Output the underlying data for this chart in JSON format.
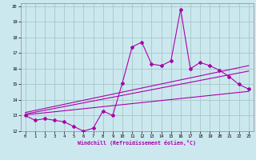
{
  "xlabel": "Windchill (Refroidissement éolien,°C)",
  "ylabel": "",
  "background_color": "#cce8ef",
  "grid_color": "#aacccc",
  "line_color": "#aa00aa",
  "xlim": [
    -0.5,
    23.5
  ],
  "ylim": [
    12,
    20.2
  ],
  "xticks": [
    0,
    1,
    2,
    3,
    4,
    5,
    6,
    7,
    8,
    9,
    10,
    11,
    12,
    13,
    14,
    15,
    16,
    17,
    18,
    19,
    20,
    21,
    22,
    23
  ],
  "yticks": [
    12,
    13,
    14,
    15,
    16,
    17,
    18,
    19,
    20
  ],
  "main_x": [
    0,
    1,
    2,
    3,
    4,
    5,
    6,
    7,
    8,
    9,
    10,
    11,
    12,
    13,
    14,
    15,
    16,
    17,
    18,
    19,
    20,
    21,
    22,
    23
  ],
  "main_y": [
    13.0,
    12.7,
    12.8,
    12.7,
    12.6,
    12.3,
    12.0,
    12.2,
    13.3,
    13.0,
    15.1,
    17.4,
    17.7,
    16.3,
    16.2,
    16.5,
    19.8,
    16.0,
    16.4,
    16.2,
    15.9,
    15.5,
    15.0,
    14.7
  ],
  "line2_x": [
    0,
    23
  ],
  "line2_y": [
    13.05,
    14.55
  ],
  "line3_x": [
    0,
    23
  ],
  "line3_y": [
    13.1,
    15.85
  ],
  "line4_x": [
    0,
    23
  ],
  "line4_y": [
    13.2,
    16.2
  ]
}
